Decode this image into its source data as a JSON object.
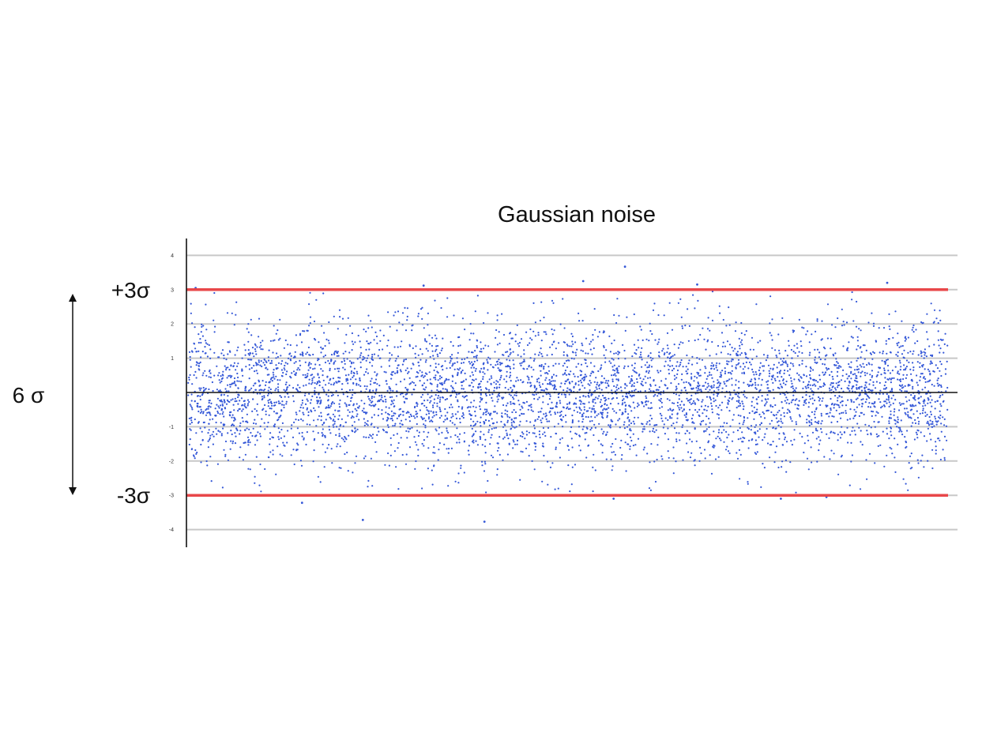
{
  "chart_data": {
    "type": "scatter",
    "title": "Gaussian noise",
    "xlabel": "",
    "ylabel": "",
    "y_ticks": [
      "4",
      "3",
      "2",
      "1",
      "",
      "-1",
      "-2",
      "-3",
      "-4"
    ],
    "y_tick_values": [
      4,
      3,
      2,
      1,
      0,
      -1,
      -2,
      -3,
      -4
    ],
    "ylim": [
      -4.4,
      4.4
    ],
    "grid": true,
    "zero_line": true,
    "point_count": 5000,
    "distribution": "normal",
    "mean": 0,
    "std": 1,
    "limits": [
      {
        "label": "+3σ",
        "value": 3
      },
      {
        "label": "-3σ",
        "value": -3
      }
    ],
    "span_label": "6 σ",
    "outliers": [
      {
        "x": 0.575,
        "y": 3.67
      },
      {
        "x": 0.52,
        "y": 3.25
      },
      {
        "x": 0.31,
        "y": 3.12
      },
      {
        "x": 0.67,
        "y": 3.15
      },
      {
        "x": 0.92,
        "y": 3.2
      },
      {
        "x": 0.01,
        "y": 3.05
      },
      {
        "x": 0.23,
        "y": -3.72
      },
      {
        "x": 0.39,
        "y": -3.77
      },
      {
        "x": 0.15,
        "y": -3.22
      },
      {
        "x": 0.56,
        "y": -3.1
      },
      {
        "x": 0.78,
        "y": -3.1
      },
      {
        "x": 0.84,
        "y": -3.05
      }
    ]
  },
  "colors": {
    "points": "#3558d8",
    "limit_lines": "#e8474a",
    "grid": "#c8c8c8",
    "axis": "#111111"
  }
}
